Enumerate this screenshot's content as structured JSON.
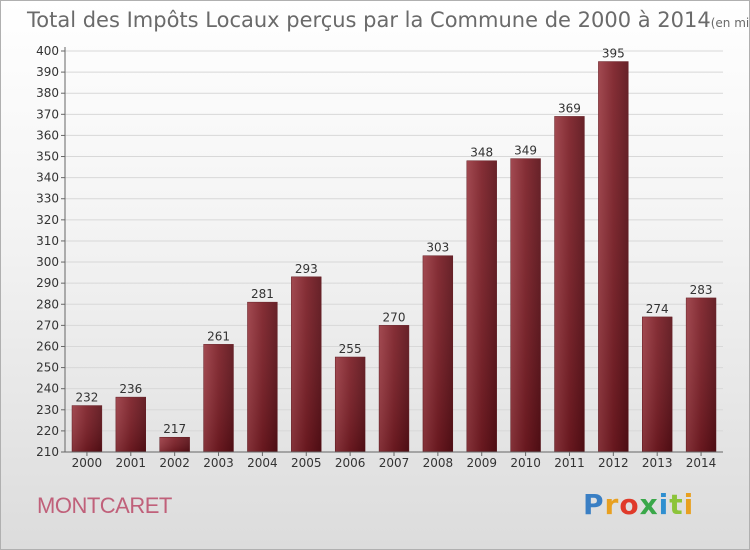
{
  "chart_data": {
    "type": "bar",
    "title": "Total des Impôts Locaux perçus par la Commune de 2000 à 2014",
    "subtitle": "(en milliers d'€)",
    "categories": [
      "2000",
      "2001",
      "2002",
      "2003",
      "2004",
      "2005",
      "2006",
      "2007",
      "2008",
      "2009",
      "2010",
      "2011",
      "2012",
      "2013",
      "2014"
    ],
    "values": [
      232,
      236,
      217,
      261,
      281,
      293,
      255,
      270,
      303,
      348,
      349,
      369,
      395,
      274,
      283
    ],
    "xlabel": "",
    "ylabel": "",
    "ylim": [
      210,
      400
    ],
    "ytick_step": 10,
    "grid": true,
    "bar_color": "#7a1c24"
  },
  "commune": "MONTCARET",
  "logo": {
    "text": "Proxiti",
    "letter_colors": [
      "#3a7fc4",
      "#e8a020",
      "#e03a2a",
      "#3aa84a",
      "#2f8fd0",
      "#8cc43a",
      "#e8a020"
    ]
  }
}
